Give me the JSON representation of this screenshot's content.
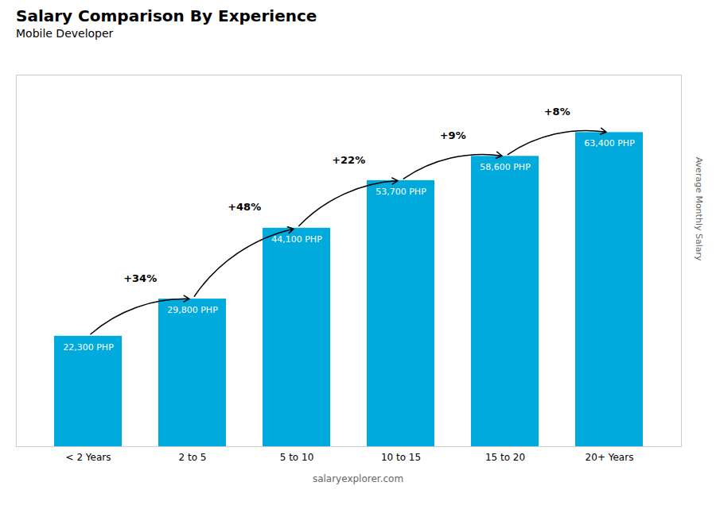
{
  "chart_data": {
    "type": "bar",
    "title": "Salary Comparison By Experience",
    "subtitle": "Mobile Developer",
    "ylabel": "Average Monthly Salary",
    "caption": "salaryexplorer.com",
    "categories": [
      "< 2 Years",
      "2 to 5",
      "5 to 10",
      "10 to 15",
      "15 to 20",
      "20+ Years"
    ],
    "values": [
      22300,
      29800,
      44100,
      53700,
      58600,
      63400
    ],
    "value_labels": [
      "22,300 PHP",
      "29,800 PHP",
      "44,100 PHP",
      "53,700 PHP",
      "58,600 PHP",
      "63,400 PHP"
    ],
    "data_labels": true,
    "annotations": [
      "+34%",
      "+48%",
      "+22%",
      "+9%",
      "+8%"
    ],
    "color": "#00aadd",
    "ylim": [
      0,
      75000
    ],
    "tick_labels": "x",
    "grid": false
  }
}
